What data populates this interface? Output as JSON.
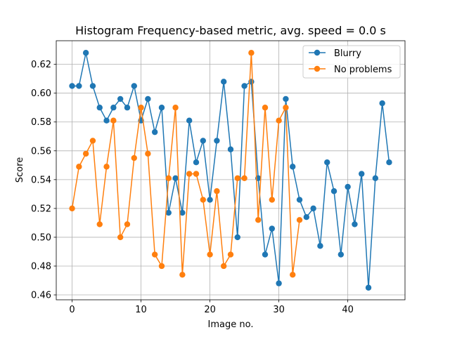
{
  "chart_data": {
    "type": "line",
    "title": "Histogram Frequency-based metric, avg. speed = 0.0 s",
    "xlabel": "Image no.",
    "ylabel": "Score",
    "xlim": [
      -2.3,
      48.3
    ],
    "ylim": [
      0.4566,
      0.6364
    ],
    "xticks": [
      0,
      10,
      20,
      30,
      40
    ],
    "yticks": [
      0.46,
      0.48,
      0.5,
      0.52,
      0.54,
      0.56,
      0.58,
      0.6,
      0.62
    ],
    "ytick_labels": [
      "0.46",
      "0.48",
      "0.50",
      "0.52",
      "0.54",
      "0.56",
      "0.58",
      "0.60",
      "0.62"
    ],
    "grid": true,
    "legend_position": "upper right",
    "series": [
      {
        "name": "Blurry",
        "color": "#1f77b4",
        "x": [
          0,
          1,
          2,
          3,
          4,
          5,
          6,
          7,
          8,
          9,
          10,
          11,
          12,
          13,
          14,
          15,
          16,
          17,
          18,
          19,
          20,
          21,
          22,
          23,
          24,
          25,
          26,
          27,
          28,
          29,
          30,
          31,
          32,
          33,
          34,
          35,
          36,
          37,
          38,
          39,
          40,
          41,
          42,
          43,
          44,
          45,
          46
        ],
        "y": [
          0.605,
          0.605,
          0.628,
          0.605,
          0.59,
          0.581,
          0.59,
          0.596,
          0.59,
          0.605,
          0.581,
          0.596,
          0.573,
          0.59,
          0.517,
          0.541,
          0.517,
          0.581,
          0.552,
          0.567,
          0.526,
          0.567,
          0.608,
          0.561,
          0.5,
          0.605,
          0.608,
          0.541,
          0.488,
          0.506,
          0.468,
          0.596,
          0.549,
          0.526,
          0.514,
          0.52,
          0.494,
          0.552,
          0.532,
          0.488,
          0.535,
          0.509,
          0.544,
          0.465,
          0.541,
          0.593,
          0.552
        ]
      },
      {
        "name": "No problems",
        "color": "#ff7f0e",
        "x": [
          0,
          1,
          2,
          3,
          4,
          5,
          6,
          7,
          8,
          9,
          10,
          11,
          12,
          13,
          14,
          15,
          16,
          17,
          18,
          19,
          20,
          21,
          22,
          23,
          24,
          25,
          26,
          27,
          28,
          29,
          30,
          31,
          32,
          33
        ],
        "y": [
          0.52,
          0.549,
          0.558,
          0.567,
          0.509,
          0.549,
          0.581,
          0.5,
          0.509,
          0.555,
          0.59,
          0.558,
          0.488,
          0.48,
          0.541,
          0.59,
          0.474,
          0.544,
          0.544,
          0.526,
          0.488,
          0.532,
          0.48,
          0.488,
          0.541,
          0.541,
          0.628,
          0.512,
          0.59,
          0.526,
          0.581,
          0.59,
          0.474,
          0.512
        ]
      }
    ]
  }
}
